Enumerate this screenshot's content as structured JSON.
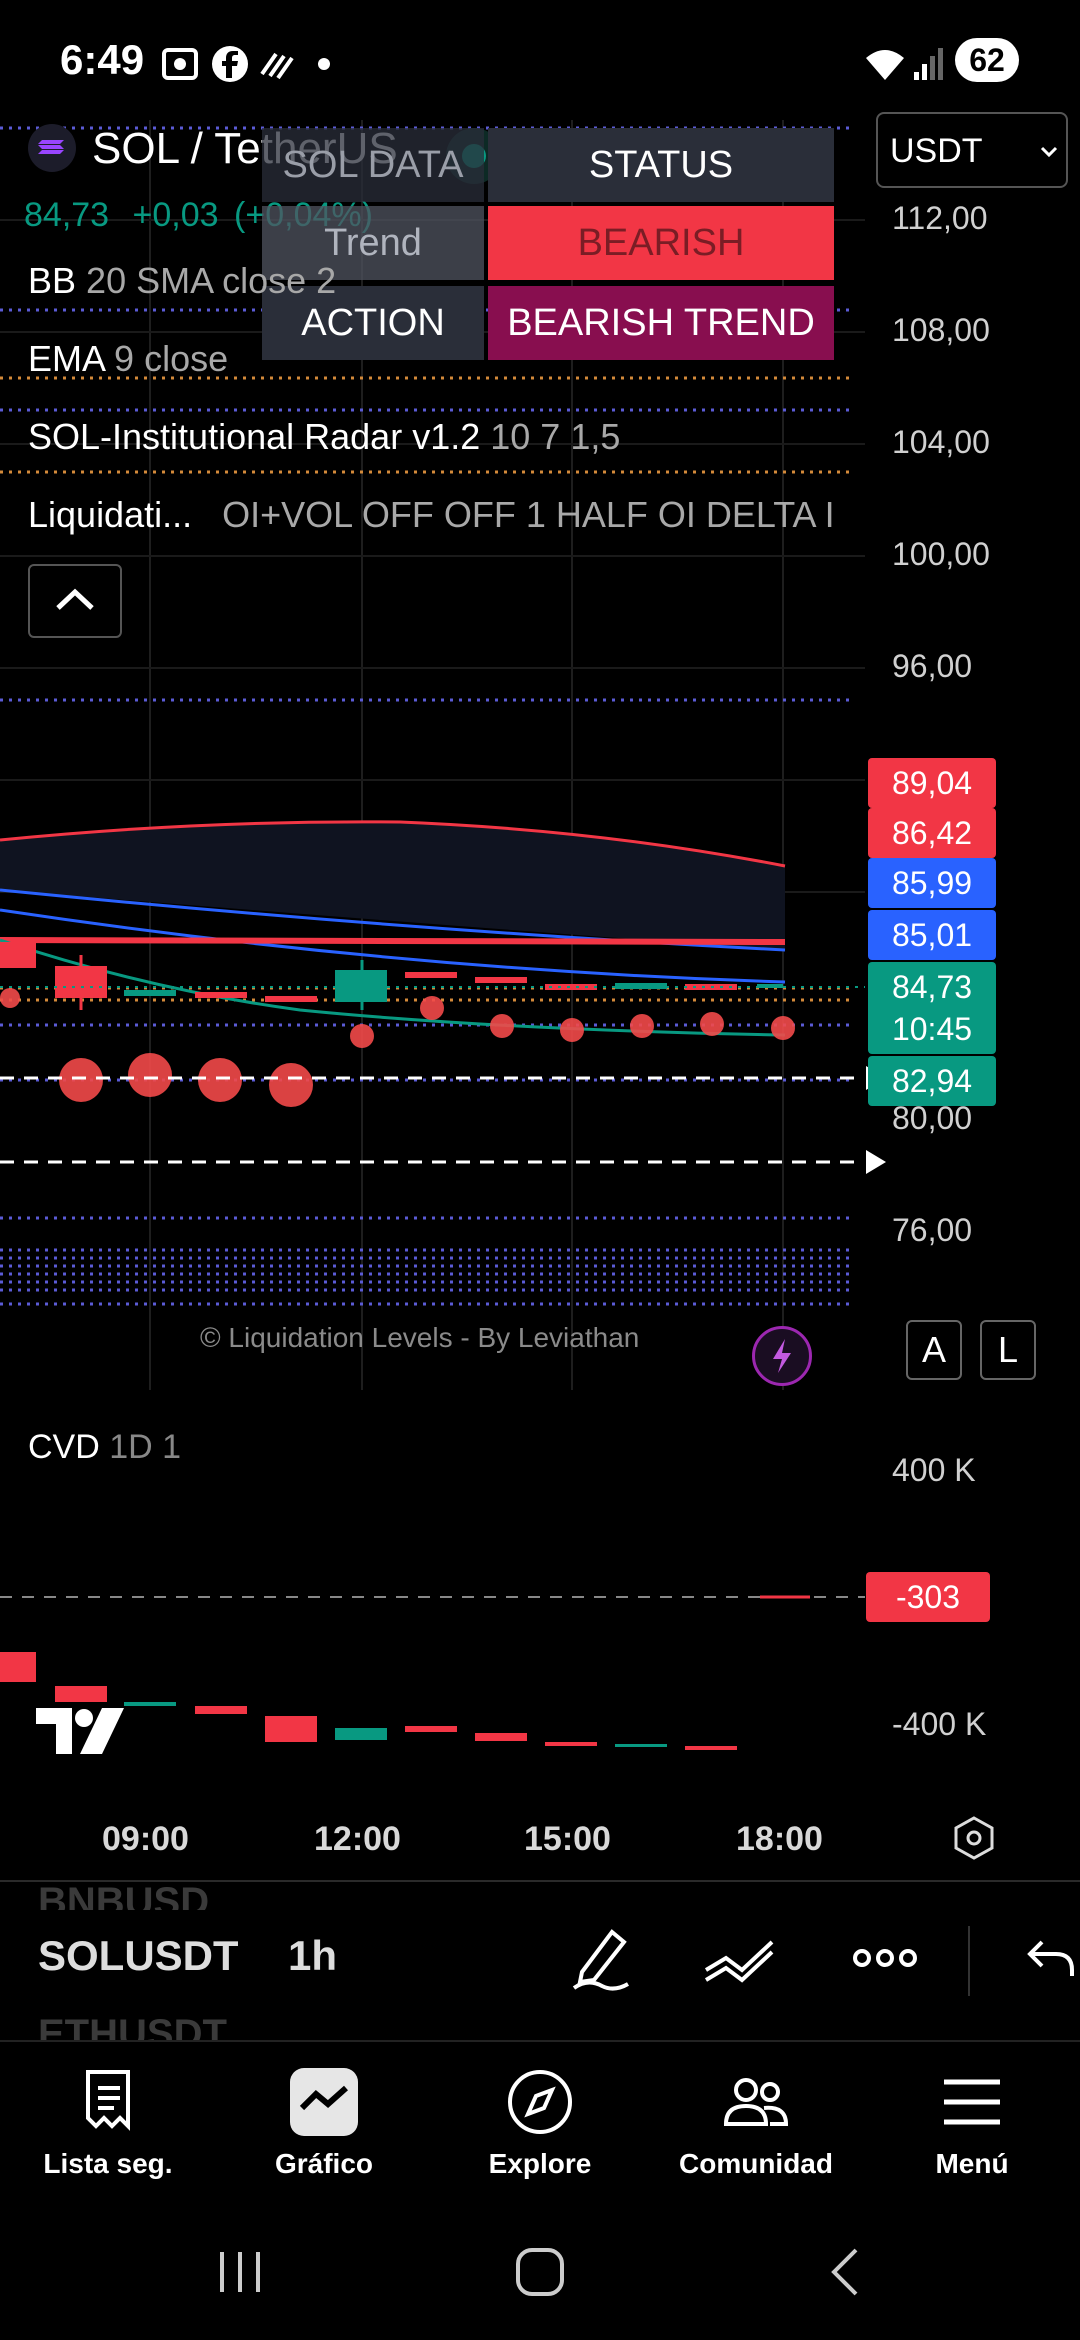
{
  "status_bar": {
    "time": "6:49",
    "battery": "62"
  },
  "symbol": {
    "name": "SOL / TetherUS",
    "price": "84,73",
    "change": "+0,03",
    "change_pct": "(+0,04%)",
    "quote_select": "USDT"
  },
  "indicators": {
    "bb": {
      "name": "BB",
      "params": "20 SMA close 2"
    },
    "ema": {
      "name": "EMA",
      "params": "9 close"
    },
    "radar": {
      "name": "SOL-Institutional Radar v1.2",
      "params": "10 7 1,5"
    },
    "liq": {
      "name": "Liquidati...",
      "params": "OI+VOL OFF OFF 1 HALF OI DELTA I"
    }
  },
  "status_table": {
    "header_left": "SOL DATA",
    "header_right": "STATUS",
    "row1_label": "Trend",
    "row1_value": "BEARISH",
    "row2_label": "ACTION",
    "row2_value": "BEARISH TREND"
  },
  "y_axis": [
    "112,00",
    "108,00",
    "104,00",
    "100,00",
    "96,00",
    "80,00",
    "76,00"
  ],
  "price_tags": [
    {
      "value": "89,04",
      "color": "#f23645"
    },
    {
      "value": "86,42",
      "color": "#f23645"
    },
    {
      "value": "85,99",
      "color": "#2962ff"
    },
    {
      "value": "85,01",
      "color": "#2962ff"
    },
    {
      "value": "84,73",
      "color": "#089981"
    },
    {
      "value": "10:45",
      "color": "#089981"
    },
    {
      "value": "82,94",
      "color": "#089981"
    }
  ],
  "watermark": "© Liquidation Levels - By Leviathan",
  "scale_buttons": {
    "a": "A",
    "l": "L"
  },
  "cvd": {
    "name": "CVD",
    "params": "1D 1",
    "y_axis": [
      "400 K",
      "-400 K"
    ],
    "tag": "-303"
  },
  "x_axis": [
    "09:00",
    "12:00",
    "15:00",
    "18:00"
  ],
  "toolbar": {
    "symbol_above": "BNBUSD",
    "symbol": "SOLUSDT",
    "symbol_below": "ETHUSDT",
    "interval": "1h"
  },
  "nav": [
    {
      "label": "Lista seg.",
      "icon": "watchlist-icon"
    },
    {
      "label": "Gráfico",
      "icon": "chart-icon"
    },
    {
      "label": "Explore",
      "icon": "compass-icon"
    },
    {
      "label": "Comunidad",
      "icon": "community-icon"
    },
    {
      "label": "Menú",
      "icon": "menu-icon"
    }
  ],
  "colors": {
    "bear": "#f23645",
    "bull": "#089981",
    "blue": "#2962ff",
    "table_dark": "#2a2e39",
    "maroon": "#880e4f"
  }
}
